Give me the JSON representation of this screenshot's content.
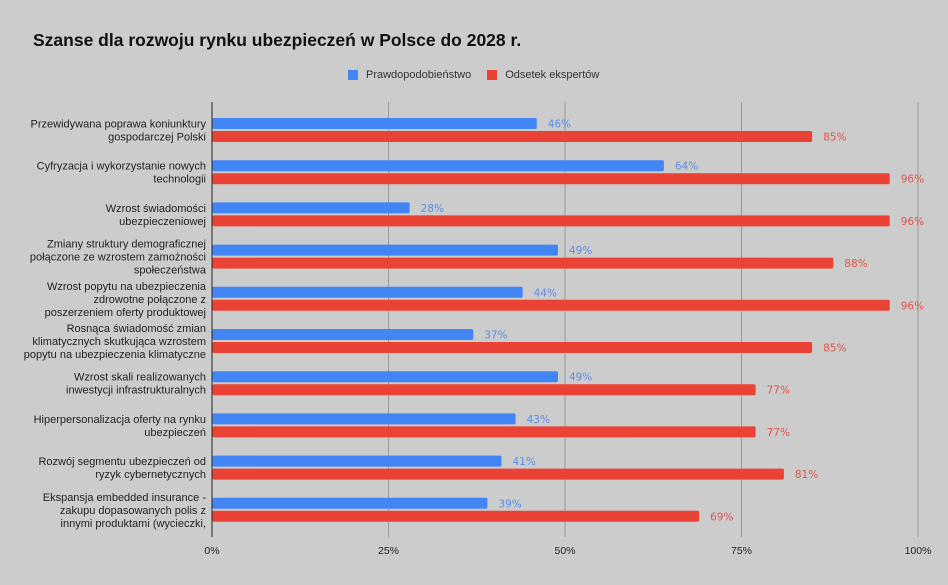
{
  "chart_data": {
    "type": "bar",
    "orientation": "horizontal",
    "title": "Szanse dla rozwoju rynku ubezpieczeń w Polsce do 2028 r.",
    "xlabel": "",
    "ylabel": "",
    "xlim": [
      0,
      100
    ],
    "x_ticks": [
      "0%",
      "25%",
      "50%",
      "75%",
      "100%"
    ],
    "x_tick_values": [
      0,
      25,
      50,
      75,
      100
    ],
    "grid": true,
    "legend_position": "top-center",
    "categories": [
      [
        "Przewidywana poprawa koniunktury",
        "gospodarczej Polski"
      ],
      [
        "Cyfryzacja i wykorzystanie nowych",
        "technologii"
      ],
      [
        "Wzrost świadomości",
        "ubezpieczeniowej"
      ],
      [
        "Zmiany struktury demograficznej",
        "połączone ze wzrostem zamożności",
        "społeczeństwa"
      ],
      [
        "Wzrost popytu na ubezpieczenia",
        "zdrowotne połączone z",
        "poszerzeniem oferty produktowej"
      ],
      [
        "Rosnąca świadomość zmian",
        "klimatycznych skutkująca wzrostem",
        "popytu na ubezpieczenia klimatyczne"
      ],
      [
        "Wzrost skali realizowanych",
        "inwestycji infrastrukturalnych"
      ],
      [
        "Hiperpersonalizacja oferty na rynku",
        "ubezpieczeń"
      ],
      [
        "Rozwój segmentu ubezpieczeń od",
        "ryzyk cybernetycznych"
      ],
      [
        "Ekspansja embedded insurance -",
        "zakupu dopasowanych polis z",
        "innymi produktami (wycieczki,"
      ]
    ],
    "series": [
      {
        "name": "Prawdopodobieństwo",
        "color": "#4285f4",
        "label_color": "#5b8ee6",
        "values": [
          46,
          64,
          28,
          49,
          44,
          37,
          49,
          43,
          41,
          39
        ]
      },
      {
        "name": "Odsetek ekspertów",
        "color": "#ea4335",
        "label_color": "#e0554a",
        "values": [
          85,
          96,
          96,
          88,
          96,
          85,
          77,
          77,
          81,
          69
        ]
      }
    ],
    "value_suffix": "%"
  }
}
